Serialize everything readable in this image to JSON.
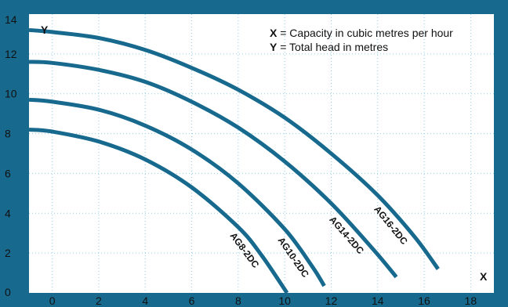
{
  "chart_data": {
    "type": "line",
    "xlabel": "X",
    "ylabel": "Y",
    "legend": [
      {
        "key": "X",
        "text": " = Capacity in cubic metres per hour"
      },
      {
        "key": "Y",
        "text": " = Total head in metres"
      }
    ],
    "legend_position": "top-right",
    "xlim": [
      -1,
      19
    ],
    "ylim": [
      0,
      14
    ],
    "xticks": [
      0,
      2,
      4,
      6,
      8,
      10,
      12,
      14,
      16,
      18
    ],
    "yticks": [
      0,
      2,
      4,
      6,
      8,
      10,
      12,
      14
    ],
    "grid": true,
    "colors": {
      "background": "#17698e",
      "plot_area": "#ffffff",
      "curve": "#17698e",
      "grid": "#8fd0ea"
    },
    "series": [
      {
        "name": "AG8-2DC",
        "x": [
          -1,
          0,
          2,
          4,
          6,
          8,
          9,
          10.1
        ],
        "y": [
          8.2,
          8.1,
          7.6,
          6.7,
          5.3,
          3.3,
          1.9,
          0.0
        ]
      },
      {
        "name": "AG10-2DC",
        "x": [
          -1,
          0,
          2,
          4,
          6,
          8,
          10,
          11.2,
          11.7
        ],
        "y": [
          9.7,
          9.6,
          9.2,
          8.4,
          7.2,
          5.5,
          3.2,
          1.3,
          0.35
        ]
      },
      {
        "name": "AG14-2DC",
        "x": [
          -1,
          0,
          2,
          4,
          6,
          8,
          10,
          12,
          13.8,
          14.8
        ],
        "y": [
          11.6,
          11.55,
          11.2,
          10.6,
          9.6,
          8.3,
          6.6,
          4.5,
          2.2,
          0.8
        ]
      },
      {
        "name": "AG16-2DC",
        "x": [
          -1,
          0,
          2,
          4,
          6,
          8,
          10,
          12,
          14,
          15.6,
          16.6
        ],
        "y": [
          13.2,
          13.1,
          12.8,
          12.2,
          11.3,
          10.2,
          8.8,
          7.0,
          4.9,
          2.8,
          1.2
        ]
      }
    ]
  }
}
